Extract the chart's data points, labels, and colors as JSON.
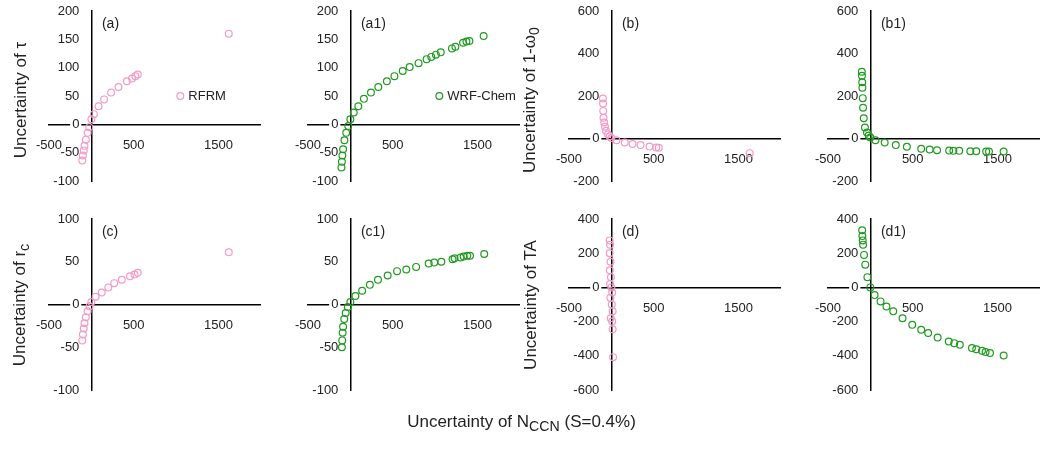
{
  "chart_data": [
    {
      "type": "scatter",
      "xlim": [
        -500,
        2000
      ],
      "xticks": [
        -500,
        500,
        1500
      ],
      "ylim": [
        -100,
        200
      ],
      "yticks": [
        -100,
        -50,
        0,
        50,
        100,
        150,
        200
      ],
      "ylabel": "Uncertainty of τ",
      "annotations": [
        "(a)"
      ],
      "marker": "circle",
      "legend": "right",
      "series": [
        {
          "name": "RFRM",
          "color": "#f59ac8",
          "x": [
            -107,
            -100,
            -90,
            -81,
            -65,
            -44,
            -25,
            0,
            30,
            85,
            150,
            233,
            320,
            419,
            480,
            520,
            548,
            1622
          ],
          "values": [
            -64,
            -55,
            -46,
            -38,
            -27,
            -15,
            -5,
            9,
            18,
            32,
            44,
            56,
            66,
            76,
            81,
            85,
            88,
            160
          ]
        }
      ]
    },
    {
      "type": "scatter",
      "xlim": [
        -500,
        2000
      ],
      "xticks": [
        -500,
        500,
        1500
      ],
      "ylim": [
        -100,
        200
      ],
      "yticks": [
        -100,
        -50,
        0,
        50,
        100,
        150,
        200
      ],
      "annotations": [
        "(a1)"
      ],
      "marker": "circle",
      "legend": "right",
      "series": [
        {
          "name": "WRF-Chem",
          "color": "#1f9a1f",
          "x": [
            -105,
            -100,
            -94,
            -86,
            -70,
            -49,
            -25,
            0,
            40,
            94,
            160,
            243,
            330,
            431,
            520,
            618,
            700,
            805,
            900,
            955,
            1010,
            1067,
            1199,
            1240,
            1330,
            1370,
            1405,
            1573
          ],
          "values": [
            -76,
            -66,
            -55,
            -44,
            -28,
            -15,
            -3,
            9,
            21,
            32,
            45,
            56,
            66,
            76,
            85,
            94,
            101,
            108,
            115,
            119,
            123,
            127,
            134,
            137,
            144,
            146,
            147,
            156
          ]
        }
      ]
    },
    {
      "type": "scatter",
      "xlim": [
        -500,
        2000
      ],
      "xticks": [
        -500,
        500,
        1500
      ],
      "ylim": [
        -200,
        600
      ],
      "yticks": [
        -200,
        0,
        200,
        400,
        600
      ],
      "ylabel": "Uncertainty of 1-ω$_{0}$",
      "annotations": [
        "(b)"
      ],
      "marker": "circle",
      "legend": false,
      "series": [
        {
          "color": "#f59ac8",
          "x": [
            -100,
            -98,
            -96,
            -93,
            -85,
            -75,
            -63,
            -40,
            -20,
            0,
            60,
            159,
            250,
            344,
            450,
            530,
            560,
            1633
          ],
          "values": [
            188,
            165,
            130,
            98,
            75,
            55,
            36,
            20,
            10,
            2,
            -8,
            -19,
            -26,
            -31,
            -38,
            -42,
            -44,
            -69
          ]
        }
      ]
    },
    {
      "type": "scatter",
      "xlim": [
        -500,
        2000
      ],
      "xticks": [
        -500,
        500,
        1500
      ],
      "ylim": [
        -200,
        600
      ],
      "yticks": [
        -200,
        0,
        200,
        400,
        600
      ],
      "annotations": [
        "(b1)"
      ],
      "marker": "circle",
      "legend": false,
      "series": [
        {
          "color": "#1f9a1f",
          "x": [
            -101,
            -99,
            -96,
            -94,
            -90,
            -86,
            -78,
            -64,
            -40,
            -20,
            0,
            60,
            169,
            300,
            431,
            600,
            700,
            787,
            930,
            980,
            1049,
            1180,
            1250,
            1367,
            1400,
            1573
          ],
          "values": [
            314,
            295,
            265,
            239,
            190,
            145,
            95,
            52,
            28,
            14,
            5,
            -8,
            -19,
            -31,
            -39,
            -48,
            -52,
            -55,
            -57,
            -58,
            -58,
            -60,
            -60,
            -61,
            -61,
            -61
          ]
        }
      ]
    },
    {
      "type": "scatter",
      "xlim": [
        -500,
        2000
      ],
      "xticks": [
        -500,
        500,
        1500
      ],
      "ylim": [
        -100,
        100
      ],
      "yticks": [
        -100,
        -50,
        0,
        50,
        100
      ],
      "ylabel": "Uncertainty of r$_{c}$",
      "annotations": [
        "(c)"
      ],
      "marker": "circle",
      "legend": false,
      "series": [
        {
          "color": "#f59ac8",
          "x": [
            -107,
            -100,
            -90,
            -81,
            -65,
            -44,
            -20,
            0,
            50,
            122,
            200,
            270,
            360,
            456,
            510,
            548,
            1622
          ],
          "values": [
            -42,
            -35,
            -28,
            -22,
            -15,
            -8,
            -2,
            3,
            9,
            14,
            20,
            25,
            29,
            33,
            35,
            37,
            61
          ]
        }
      ]
    },
    {
      "type": "scatter",
      "xlim": [
        -500,
        2000
      ],
      "xticks": [
        -500,
        500,
        1500
      ],
      "ylim": [
        -100,
        100
      ],
      "yticks": [
        -100,
        -50,
        0,
        50,
        100
      ],
      "xlabel": "Uncertainty of N$_{CCN}$ (S=0.4%)",
      "annotations": [
        "(c1)"
      ],
      "marker": "circle",
      "legend": false,
      "series": [
        {
          "color": "#1f9a1f",
          "x": [
            -100,
            -96,
            -91,
            -86,
            -72,
            -55,
            -30,
            0,
            60,
            139,
            230,
            326,
            440,
            551,
            660,
            776,
            925,
            990,
            1074,
            1206,
            1230,
            1300,
            1337,
            1380,
            1412,
            1580
          ],
          "values": [
            -50,
            -42,
            -33,
            -26,
            -17,
            -10,
            -3,
            3,
            10,
            16,
            23,
            29,
            34,
            39,
            41,
            44,
            48,
            49,
            50,
            53,
            54,
            55,
            56,
            57,
            57,
            59
          ]
        }
      ]
    },
    {
      "type": "scatter",
      "xlim": [
        -500,
        2000
      ],
      "xticks": [
        -500,
        500,
        1500
      ],
      "ylim": [
        -600,
        400
      ],
      "yticks": [
        -600,
        -400,
        -200,
        0,
        200,
        400
      ],
      "ylabel": "Uncertainty of TA",
      "annotations": [
        "(d)"
      ],
      "marker": "circle",
      "legend": false,
      "series": [
        {
          "color": "#f59ac8",
          "x": [
            -20,
            -15,
            -20,
            -10,
            -18,
            -5,
            -15,
            0,
            10,
            -12,
            5,
            15,
            -8,
            10,
            15,
            20
          ],
          "values": [
            275,
            250,
            200,
            150,
            100,
            60,
            20,
            0,
            -30,
            -60,
            -100,
            -140,
            -180,
            -200,
            -245,
            -408
          ]
        }
      ]
    },
    {
      "type": "scatter",
      "xlim": [
        -500,
        2000
      ],
      "xticks": [
        -500,
        500,
        1500
      ],
      "ylim": [
        -600,
        400
      ],
      "yticks": [
        -600,
        -400,
        -200,
        0,
        200,
        400
      ],
      "annotations": [
        "(d1)"
      ],
      "marker": "circle",
      "legend": false,
      "series": [
        {
          "color": "#1f9a1f",
          "x": [
            -97,
            -94,
            -90,
            -86,
            -75,
            -60,
            -35,
            0,
            50,
            120,
            190,
            270,
            380,
            494,
            600,
            682,
            794,
            925,
            990,
            1056,
            1199,
            1250,
            1318,
            1360,
            1412,
            1573
          ],
          "values": [
            334,
            300,
            275,
            250,
            190,
            133,
            60,
            0,
            -45,
            -82,
            -112,
            -140,
            -180,
            -219,
            -248,
            -267,
            -293,
            -316,
            -326,
            -336,
            -355,
            -362,
            -371,
            -378,
            -384,
            -398
          ]
        }
      ]
    }
  ]
}
